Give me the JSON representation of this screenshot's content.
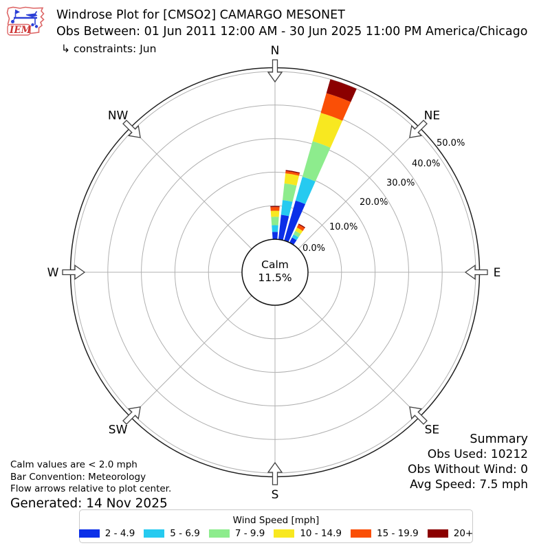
{
  "header": {
    "logo_text": "IEM",
    "title": "Windrose Plot for [CMSO2] CAMARGO MESONET",
    "subtitle": "Obs Between: 01 Jun 2011 12:00 AM - 30 Jun 2025 11:00 PM America/Chicago",
    "constraints": "↳ constraints: Jun"
  },
  "notes": {
    "calm_note": "Calm values are < 2.0 mph",
    "convention_note": "Bar Convention: Meteorology",
    "arrows_note": "Flow arrows relative to plot center.",
    "generated": "Generated: 14 Nov 2025"
  },
  "summary": {
    "title": "Summary",
    "obs_used": "Obs Used: 10212",
    "obs_without_wind": "Obs Without Wind: 0",
    "avg_speed": "Avg Speed: 7.5 mph"
  },
  "legend": {
    "title": "Wind Speed [mph]",
    "items": [
      {
        "label": "2 - 4.9",
        "color": "#0b2fe8"
      },
      {
        "label": "5 - 6.9",
        "color": "#26caf0"
      },
      {
        "label": "7 - 9.9",
        "color": "#8dec8d"
      },
      {
        "label": "10 - 14.9",
        "color": "#f8e820"
      },
      {
        "label": "15 - 19.9",
        "color": "#fa4f06"
      },
      {
        "label": "20+",
        "color": "#8b0000"
      }
    ]
  },
  "chart_data": {
    "type": "windrose",
    "title": "Windrose Plot for [CMSO2] CAMARGO MESONET",
    "units": "percent frequency by wind direction",
    "speed_bins_mph": [
      "2 - 4.9",
      "5 - 6.9",
      "7 - 9.9",
      "10 - 14.9",
      "15 - 19.9",
      "20+"
    ],
    "colors": [
      "#0b2fe8",
      "#26caf0",
      "#8dec8d",
      "#f8e820",
      "#fa4f06",
      "#8b0000"
    ],
    "compass_labels": [
      "N",
      "NE",
      "E",
      "SE",
      "S",
      "SW",
      "W",
      "NW"
    ],
    "ring_labels": [
      "0.0%",
      "10.0%",
      "20.0%",
      "30.0%",
      "40.0%",
      "50.0%"
    ],
    "ring_values_pct": [
      0,
      10,
      20,
      30,
      40,
      50
    ],
    "rlim_pct": [
      0,
      50
    ],
    "grid_on": true,
    "sector_width_deg": 10,
    "bar_width_deg": 8,
    "bar_convention": "Meteorology",
    "calm": {
      "label": "Calm",
      "pct_label": "11.5%",
      "pct": 11.5,
      "threshold": "< 2.0 mph"
    },
    "bars": [
      {
        "direction_deg": 0,
        "values_pct": [
          2.2,
          2.0,
          2.5,
          1.8,
          1.1,
          0.3
        ],
        "total_pct": 9.9
      },
      {
        "direction_deg": 10,
        "values_pct": [
          7.4,
          4.4,
          5.0,
          3.0,
          0.7,
          0.3
        ],
        "total_pct": 20.8
      },
      {
        "direction_deg": 20,
        "values_pct": [
          12.4,
          7.4,
          11.0,
          8.8,
          6.1,
          4.3
        ],
        "total_pct": 50.0
      },
      {
        "direction_deg": 30,
        "values_pct": [
          1.7,
          1.0,
          1.2,
          1.1,
          1.0,
          0.3
        ],
        "total_pct": 6.3
      }
    ]
  }
}
